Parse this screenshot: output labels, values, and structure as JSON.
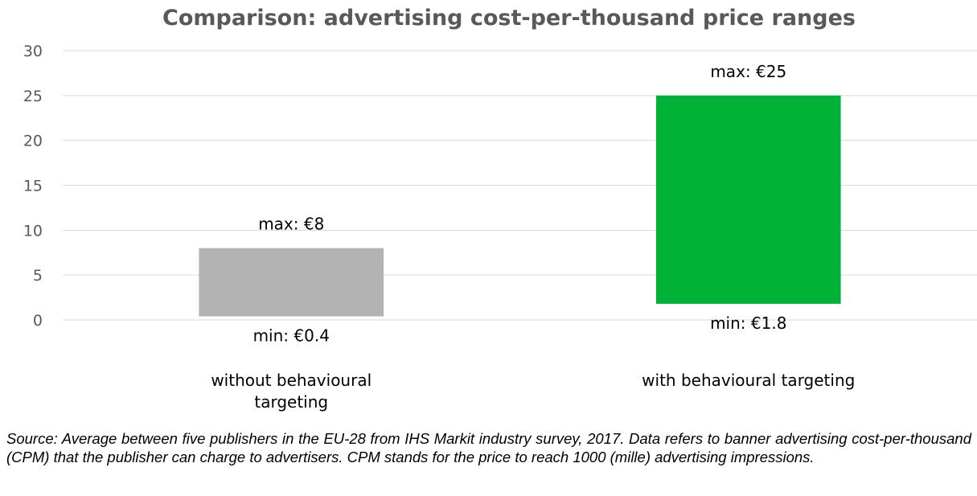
{
  "chart_data": {
    "type": "bar",
    "title": "Comparison: advertising cost-per-thousand price ranges",
    "xlabel": "",
    "ylabel": "",
    "ylim": [
      0,
      30
    ],
    "yticks": [
      0,
      5,
      10,
      15,
      20,
      25,
      30
    ],
    "grid": true,
    "categories": [
      [
        "without behavioural",
        "targeting"
      ],
      [
        "with behavioural targeting"
      ]
    ],
    "ranges": [
      {
        "min": 0.4,
        "max": 8,
        "color": "#b3b3b3",
        "min_label": "min: €0.4",
        "max_label": "max: €8"
      },
      {
        "min": 1.8,
        "max": 25,
        "color": "#00b336",
        "min_label": "min: €1.8",
        "max_label": "max: €25"
      }
    ]
  },
  "source_note": "Source: Average between five publishers in the EU-28 from IHS Markit industry survey, 2017. Data refers to banner advertising cost-per-thousand (CPM) that the publisher can charge to advertisers. CPM stands for the price to reach 1000 (mille) advertising impressions."
}
